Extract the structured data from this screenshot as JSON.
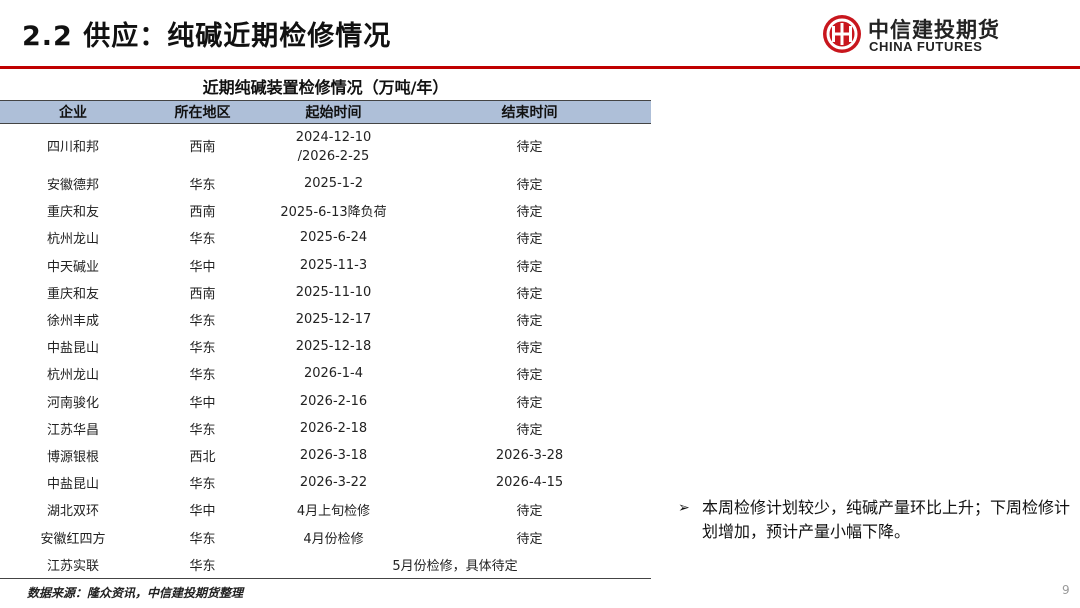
{
  "header": {
    "title": "2.2 供应：纯碱近期检修情况",
    "logo_cn": "中信建投期货",
    "logo_en": "CHINA FUTURES"
  },
  "table": {
    "title": "近期纯碱装置检修情况（万吨/年）",
    "columns": [
      "企业",
      "所在地区",
      "起始时间",
      "结束时间"
    ],
    "rows": [
      [
        "四川和邦",
        "西南",
        "2024-12-10\n/2026-2-25",
        "待定"
      ],
      [
        "安徽德邦",
        "华东",
        "2025-1-2",
        "待定"
      ],
      [
        "重庆和友",
        "西南",
        "2025-6-13降负荷",
        "待定"
      ],
      [
        "杭州龙山",
        "华东",
        "2025-6-24",
        "待定"
      ],
      [
        "中天碱业",
        "华中",
        "2025-11-3",
        "待定"
      ],
      [
        "重庆和友",
        "西南",
        "2025-11-10",
        "待定"
      ],
      [
        "徐州丰成",
        "华东",
        "2025-12-17",
        "待定"
      ],
      [
        "中盐昆山",
        "华东",
        "2025-12-18",
        "待定"
      ],
      [
        "杭州龙山",
        "华东",
        "2026-1-4",
        "待定"
      ],
      [
        "河南骏化",
        "华中",
        "2026-2-16",
        "待定"
      ],
      [
        "江苏华昌",
        "华东",
        "2026-2-18",
        "待定"
      ],
      [
        "博源银根",
        "西北",
        "2026-3-18",
        "2026-3-28"
      ],
      [
        "中盐昆山",
        "华东",
        "2026-3-22",
        "2026-4-15"
      ],
      [
        "湖北双环",
        "华中",
        "4月上旬检修",
        "待定"
      ],
      [
        "安徽红四方",
        "华东",
        "4月份检修",
        "待定"
      ],
      [
        "江苏实联",
        "华东",
        "5月份检修，具体待定"
      ]
    ]
  },
  "source": "数据来源：隆众资讯，中信建投期货整理",
  "note": {
    "bullet": "➢",
    "text": "本周检修计划较少，纯碱产量环比上升；下周检修计划增加，预计产量小幅下降。"
  },
  "page_number": "9",
  "colors": {
    "accent": "#c00000",
    "header_fill": "#aebfd8"
  }
}
